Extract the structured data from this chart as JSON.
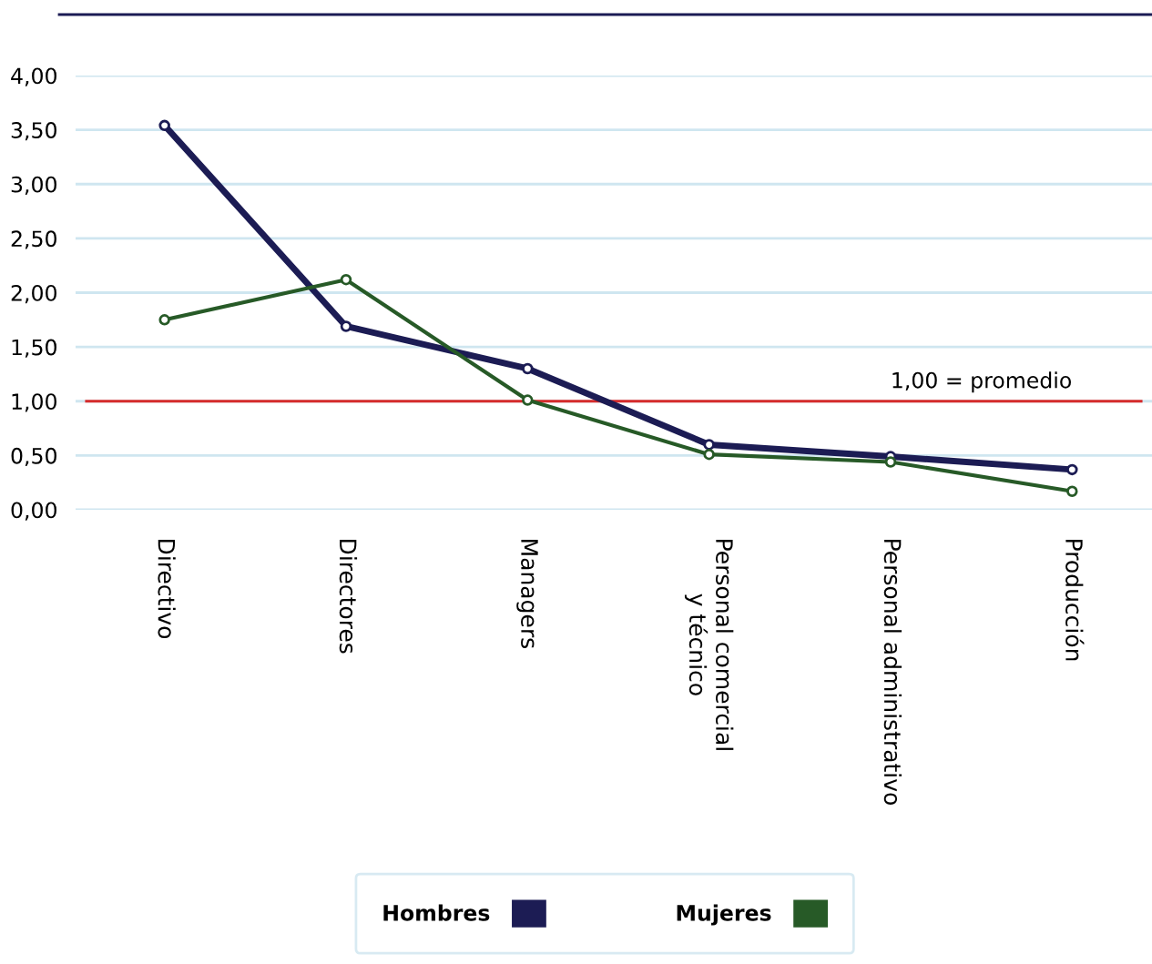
{
  "chart_data": {
    "type": "line",
    "categories": [
      "Directivo",
      "Directores",
      "Managers",
      "Personal comercial\ny técnico",
      "Personal administrativo",
      "Producción"
    ],
    "series": [
      {
        "name": "Hombres",
        "color": "#1c1c54",
        "values": [
          3.54,
          1.69,
          1.3,
          0.6,
          0.49,
          0.37
        ]
      },
      {
        "name": "Mujeres",
        "color": "#275a27",
        "values": [
          1.75,
          2.12,
          1.01,
          0.51,
          0.44,
          0.17
        ]
      }
    ],
    "ylim": [
      0,
      4
    ],
    "yticks": [
      {
        "value": 0,
        "label": "0,00"
      },
      {
        "value": 0.5,
        "label": "0,50"
      },
      {
        "value": 1,
        "label": "1,00"
      },
      {
        "value": 1.5,
        "label": "1,50"
      },
      {
        "value": 2,
        "label": "2,00"
      },
      {
        "value": 2.5,
        "label": "2,50"
      },
      {
        "value": 3,
        "label": "3,00"
      },
      {
        "value": 3.5,
        "label": "3,50"
      },
      {
        "value": 4,
        "label": "4,00"
      }
    ],
    "ref_lines": [
      {
        "axis": "y",
        "value": 1,
        "label": "1,00 = promedio",
        "color": "#d62b2b"
      }
    ],
    "grid": "y",
    "legend": "bottom",
    "marker": "circle",
    "line_style": "solid"
  }
}
